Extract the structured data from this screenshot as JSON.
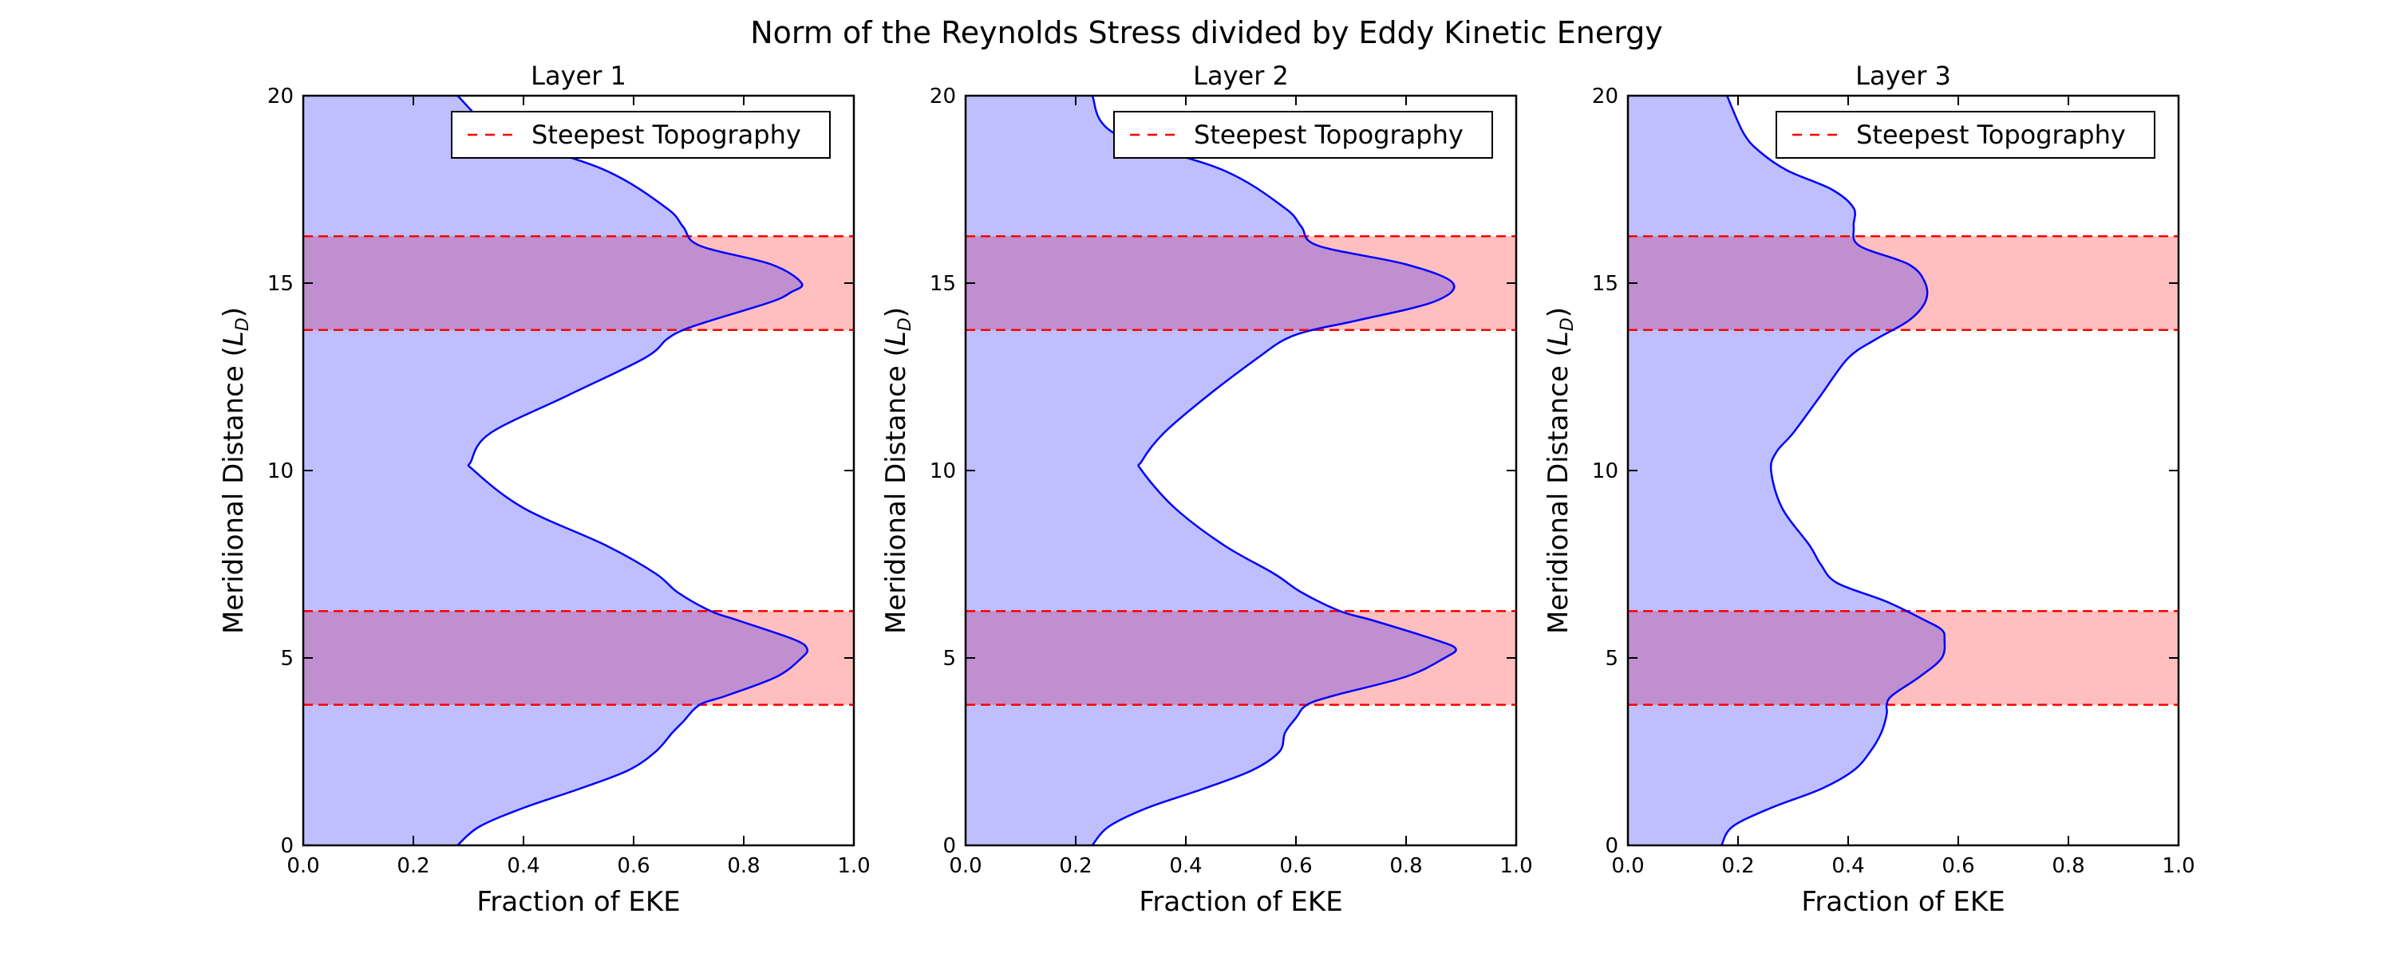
{
  "chart_data": {
    "type": "area",
    "title": "Norm of the Reynolds Stress divided by Eddy Kinetic Energy",
    "colors": {
      "curve": "#0000ff",
      "fill": "#bfbfff",
      "band": "#ffbfbf",
      "band_overlap": "#bf8fcf",
      "band_edge": "#ff0000"
    },
    "panels": [
      {
        "title": "Layer 1",
        "xlabel": "Fraction of EKE",
        "ylabel": "Meridional Distance (L_D)",
        "ylabel_main": "Meridional Distance (",
        "ylabel_sym": "L",
        "ylabel_sub": "D",
        "ylabel_close": ")",
        "xlim": [
          0,
          1
        ],
        "ylim": [
          0,
          20
        ],
        "xticks": [
          "0.0",
          "0.2",
          "0.4",
          "0.6",
          "0.8",
          "1.0"
        ],
        "yticks": [
          "0",
          "5",
          "10",
          "15",
          "20"
        ],
        "legend_label": "Steepest Topography",
        "legend_position": "top-right",
        "bands": [
          [
            3.75,
            6.25
          ],
          [
            13.75,
            16.25
          ]
        ],
        "y": [
          0,
          0.5,
          1,
          1.5,
          2,
          2.5,
          3,
          3.3,
          3.75,
          4,
          4.5,
          5,
          5.25,
          5.5,
          6,
          6.25,
          6.75,
          7.25,
          8,
          9,
          10,
          10.25,
          11,
          12,
          13,
          13.5,
          13.75,
          14,
          14.5,
          14.75,
          15,
          15.5,
          16,
          16.5,
          17,
          18,
          19,
          20
        ],
        "x": [
          0.28,
          0.32,
          0.4,
          0.5,
          0.59,
          0.64,
          0.67,
          0.69,
          0.72,
          0.77,
          0.86,
          0.905,
          0.915,
          0.89,
          0.79,
          0.74,
          0.68,
          0.64,
          0.55,
          0.4,
          0.31,
          0.305,
          0.34,
          0.48,
          0.62,
          0.66,
          0.69,
          0.74,
          0.85,
          0.885,
          0.905,
          0.85,
          0.72,
          0.69,
          0.66,
          0.55,
          0.36,
          0.28
        ]
      },
      {
        "title": "Layer 2",
        "xlabel": "Fraction of EKE",
        "ylabel": "Meridional Distance (L_D)",
        "ylabel_main": "Meridional Distance (",
        "ylabel_sym": "L",
        "ylabel_sub": "D",
        "ylabel_close": ")",
        "xlim": [
          0,
          1
        ],
        "ylim": [
          0,
          20
        ],
        "xticks": [
          "0.0",
          "0.2",
          "0.4",
          "0.6",
          "0.8",
          "1.0"
        ],
        "yticks": [
          "0",
          "5",
          "10",
          "15",
          "20"
        ],
        "legend_label": "Steepest Topography",
        "legend_position": "top-right",
        "bands": [
          [
            3.75,
            6.25
          ],
          [
            13.75,
            16.25
          ]
        ],
        "y": [
          0,
          0.5,
          1,
          1.5,
          2,
          2.5,
          3,
          3.4,
          3.75,
          4,
          4.5,
          5,
          5.25,
          5.5,
          6,
          6.25,
          6.75,
          7.25,
          8,
          9,
          10,
          10.25,
          11,
          12,
          13,
          13.5,
          13.75,
          14,
          14.5,
          15,
          15.5,
          16,
          16.5,
          17,
          18,
          19,
          20
        ],
        "x": [
          0.23,
          0.26,
          0.33,
          0.43,
          0.52,
          0.57,
          0.58,
          0.6,
          0.62,
          0.67,
          0.8,
          0.87,
          0.89,
          0.85,
          0.74,
          0.68,
          0.61,
          0.56,
          0.47,
          0.38,
          0.32,
          0.32,
          0.36,
          0.44,
          0.53,
          0.58,
          0.63,
          0.71,
          0.85,
          0.885,
          0.8,
          0.64,
          0.61,
          0.58,
          0.47,
          0.27,
          0.23
        ]
      },
      {
        "title": "Layer 3",
        "xlabel": "Fraction of EKE",
        "ylabel": "Meridional Distance (L_D)",
        "ylabel_main": "Meridional Distance (",
        "ylabel_sym": "L",
        "ylabel_sub": "D",
        "ylabel_close": ")",
        "xlim": [
          0,
          1
        ],
        "ylim": [
          0,
          20
        ],
        "xticks": [
          "0.0",
          "0.2",
          "0.4",
          "0.6",
          "0.8",
          "1.0"
        ],
        "yticks": [
          "0",
          "5",
          "10",
          "15",
          "20"
        ],
        "legend_label": "Steepest Topography",
        "legend_position": "top-right",
        "bands": [
          [
            3.75,
            6.25
          ],
          [
            13.75,
            16.25
          ]
        ],
        "y": [
          0,
          0.5,
          1,
          1.5,
          2,
          2.5,
          3,
          3.5,
          3.75,
          4,
          4.5,
          5,
          5.5,
          5.75,
          6,
          6.5,
          7,
          7.5,
          8,
          9,
          10,
          10.5,
          11,
          12,
          13,
          13.5,
          14,
          14.5,
          15,
          15.5,
          16,
          16.5,
          17,
          17.5,
          18,
          18.5,
          19,
          20
        ],
        "x": [
          0.17,
          0.19,
          0.26,
          0.35,
          0.41,
          0.44,
          0.46,
          0.47,
          0.47,
          0.48,
          0.53,
          0.57,
          0.575,
          0.57,
          0.54,
          0.47,
          0.38,
          0.35,
          0.33,
          0.28,
          0.26,
          0.27,
          0.3,
          0.35,
          0.4,
          0.45,
          0.51,
          0.54,
          0.54,
          0.51,
          0.42,
          0.41,
          0.41,
          0.37,
          0.29,
          0.24,
          0.21,
          0.18
        ]
      }
    ]
  }
}
